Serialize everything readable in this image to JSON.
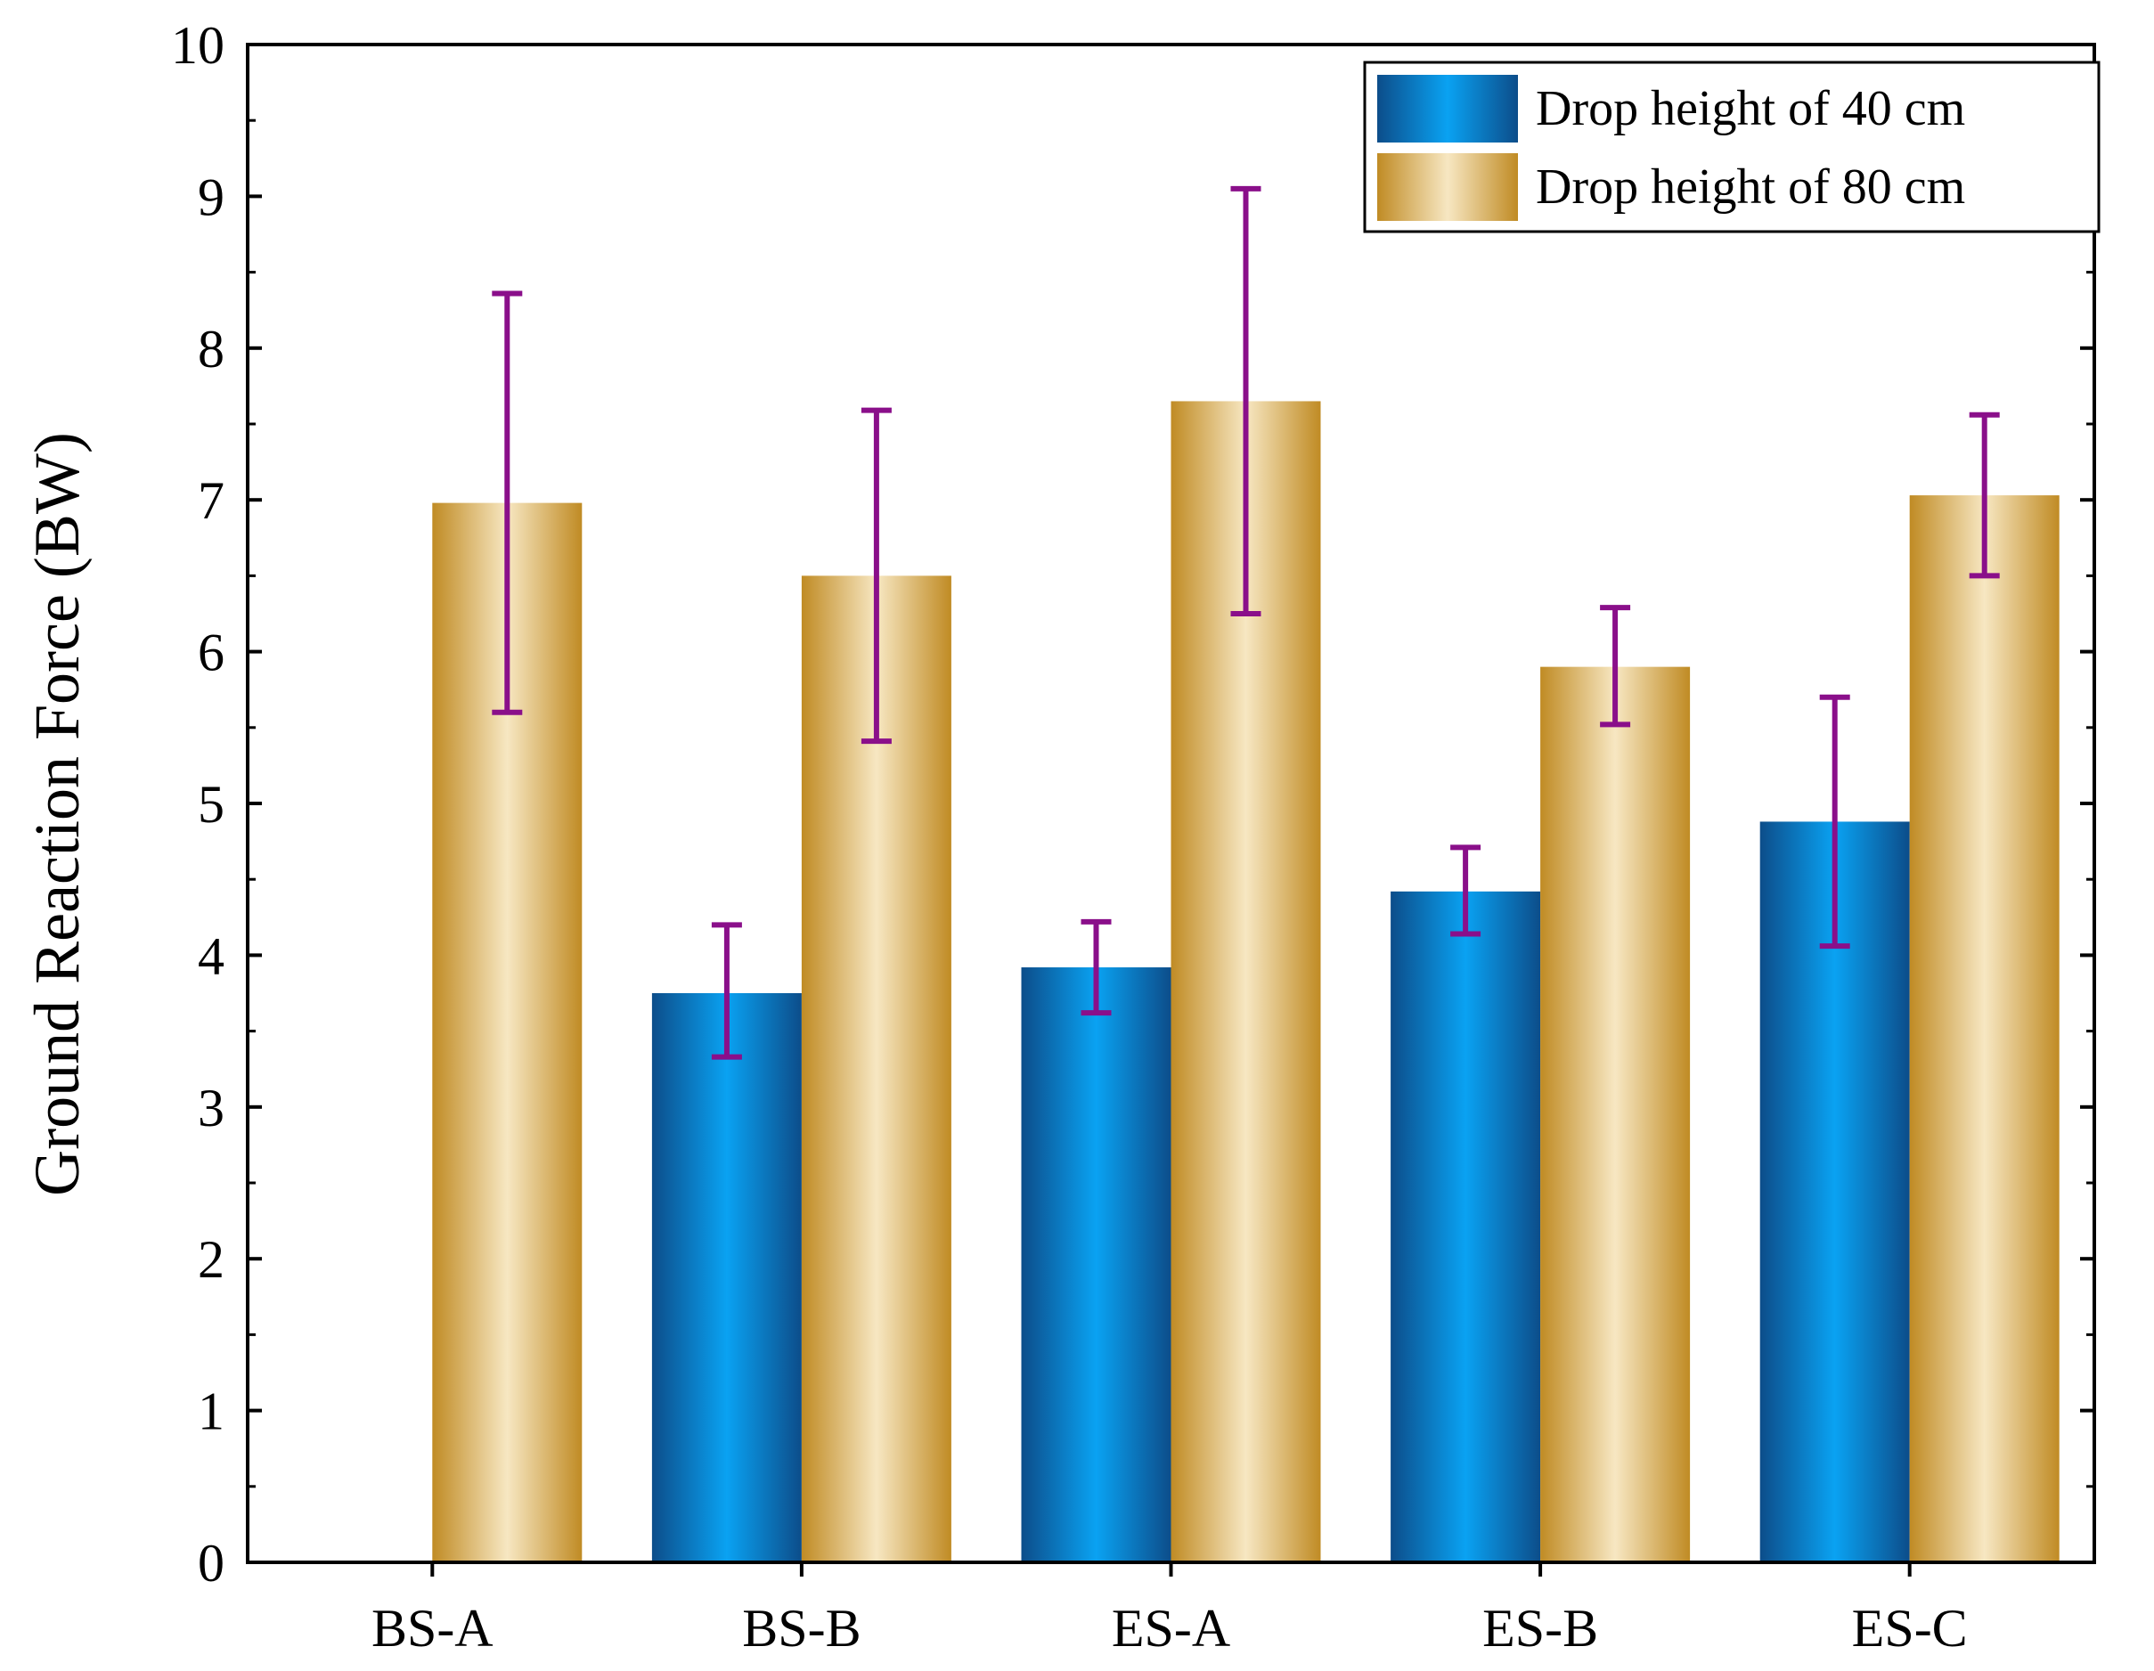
{
  "chart_data": {
    "type": "bar",
    "title": "",
    "xlabel": "",
    "ylabel": "Ground Reaction Force (BW)",
    "ylim": [
      0,
      10
    ],
    "yticks": [
      0,
      1,
      2,
      3,
      4,
      5,
      6,
      7,
      8,
      9,
      10
    ],
    "ytick_labels": [
      "0",
      "1",
      "2",
      "3",
      "4",
      "5",
      "6",
      "7",
      "8",
      "9",
      "10"
    ],
    "categories": [
      "BS-A",
      "BS-B",
      "ES-A",
      "ES-B",
      "ES-C"
    ],
    "series": [
      {
        "name": "Drop height of 40 cm",
        "values": [
          null,
          3.75,
          3.92,
          4.42,
          4.88
        ],
        "error_low": [
          null,
          3.33,
          3.62,
          4.14,
          4.06
        ],
        "error_high": [
          null,
          4.2,
          4.22,
          4.71,
          5.7
        ],
        "colors": {
          "edge": "#0c4d8a",
          "center": "#0aa2f2"
        }
      },
      {
        "name": "Drop height of 80 cm",
        "values": [
          6.98,
          6.5,
          7.65,
          5.9,
          7.03
        ],
        "error_low": [
          5.6,
          5.41,
          6.25,
          5.52,
          6.5
        ],
        "error_high": [
          8.36,
          7.59,
          9.05,
          6.29,
          7.56
        ],
        "colors": {
          "edge": "#c08b24",
          "center": "#f7e7c2"
        }
      }
    ],
    "error_bar_color": "#8a0f8a",
    "grid": false,
    "legend_position": "top-right"
  }
}
